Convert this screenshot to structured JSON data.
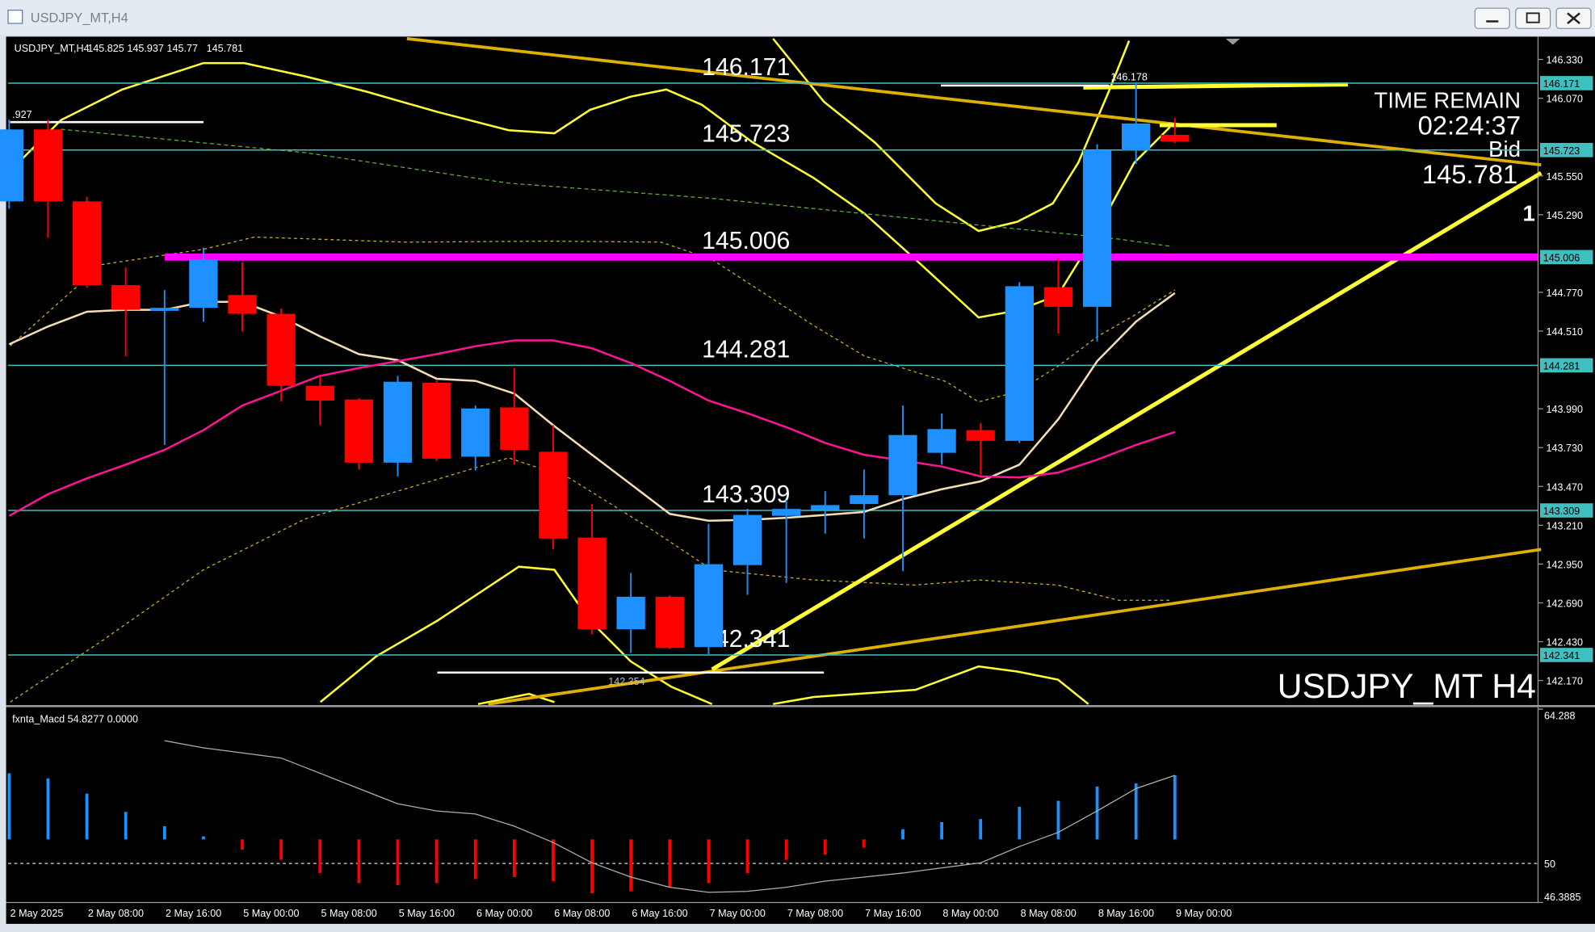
{
  "window": {
    "title": "USDJPY_MT,H4"
  },
  "chart_data": [
    {
      "type": "candlestick",
      "header": "USDJPY_MT,H4",
      "categories": [
        "2 May 2025",
        null,
        "2 May 08:00",
        null,
        "2 May 16:00",
        null,
        "5 May 00:00",
        null,
        "5 May 08:00",
        null,
        "5 May 16:00",
        null,
        "6 May 00:00",
        null,
        "6 May 08:00",
        null,
        "6 May 16:00",
        null,
        "7 May 00:00",
        null,
        "7 May 08:00",
        null,
        "7 May 16:00",
        null,
        "8 May 00:00",
        null,
        "8 May 08:00",
        null,
        "8 May 16:00",
        null,
        "9 May 00:00"
      ],
      "open": [
        145.379,
        145.861,
        145.379,
        144.818,
        144.646,
        144.666,
        144.752,
        144.626,
        144.144,
        144.052,
        143.629,
        144.164,
        143.669,
        143.999,
        143.702,
        143.127,
        142.513,
        142.731,
        142.394,
        142.943,
        143.273,
        143.312,
        143.352,
        143.411,
        143.695,
        143.847,
        143.775,
        144.805,
        144.673,
        145.722,
        145.825
      ],
      "high": [
        145.927,
        145.927,
        145.41,
        144.937,
        144.785,
        145.069,
        144.97,
        144.66,
        144.21,
        144.06,
        144.21,
        144.18,
        144.012,
        144.263,
        143.88,
        143.352,
        142.89,
        142.74,
        143.22,
        143.32,
        143.38,
        143.438,
        143.583,
        144.012,
        143.959,
        143.893,
        144.838,
        145.0,
        145.762,
        146.178,
        145.937
      ],
      "low": [
        145.33,
        145.135,
        144.8,
        144.342,
        143.748,
        144.573,
        144.507,
        144.04,
        143.88,
        143.583,
        143.537,
        143.64,
        143.576,
        143.616,
        143.05,
        142.48,
        142.354,
        142.38,
        142.341,
        142.744,
        142.824,
        143.154,
        143.121,
        142.903,
        143.616,
        143.55,
        143.76,
        144.494,
        144.441,
        145.63,
        145.77
      ],
      "close": [
        145.861,
        145.379,
        144.818,
        144.653,
        144.666,
        144.99,
        144.626,
        144.144,
        144.045,
        143.629,
        144.171,
        143.656,
        143.992,
        143.715,
        143.121,
        142.513,
        142.731,
        142.388,
        142.949,
        143.279,
        143.319,
        143.345,
        143.411,
        143.814,
        143.854,
        143.775,
        144.811,
        144.673,
        145.722,
        145.901,
        145.781
      ],
      "up_color": "#1e90ff",
      "down_color": "#ff0000",
      "series": [
        {
          "color": "#f5deb3",
          "values": [
            144.422,
            144.541,
            144.64,
            144.653,
            144.653,
            144.706,
            144.706,
            144.607,
            144.475,
            144.356,
            144.316,
            144.191,
            144.177,
            144.092,
            143.88,
            143.682,
            143.484,
            143.286,
            143.24,
            143.246,
            143.26,
            143.279,
            143.299,
            143.385,
            143.451,
            143.504,
            143.616,
            143.92,
            144.309,
            144.574,
            144.765
          ]
        },
        {
          "color": "#ff1493",
          "values": [
            143.273,
            143.418,
            143.524,
            143.616,
            143.715,
            143.847,
            144.012,
            144.111,
            144.21,
            144.263,
            144.309,
            144.356,
            144.409,
            144.448,
            144.448,
            144.395,
            144.296,
            144.177,
            144.045,
            143.96,
            143.867,
            143.761,
            143.682,
            143.643,
            143.603,
            143.537,
            143.53,
            143.563,
            143.649,
            143.748,
            143.834
          ]
        }
      ],
      "levels": [
        {
          "value": 146.171,
          "color": "#3fbfbf"
        },
        {
          "value": 145.723,
          "color": "#3fbfbf"
        },
        {
          "value": 145.006,
          "color": "#ff00ff"
        },
        {
          "value": 144.281,
          "color": "#3fbfbf"
        },
        {
          "value": 143.309,
          "color": "#3fbfbf"
        },
        {
          "value": 142.341,
          "color": "#3fbfbf"
        }
      ],
      "ylim": [
        142.012,
        146.469
      ],
      "yticks": [
        {
          "value": 146.33,
          "label": "146.330"
        },
        {
          "value": 146.07,
          "label": "146.070"
        },
        {
          "value": 145.55,
          "label": "145.550"
        },
        {
          "value": 145.29,
          "label": "145.290"
        },
        {
          "value": 144.77,
          "label": "144.770"
        },
        {
          "value": 144.51,
          "label": "144.510"
        },
        {
          "value": 143.99,
          "label": "143.990"
        },
        {
          "value": 143.73,
          "label": "143.730"
        },
        {
          "value": 143.47,
          "label": "143.470"
        },
        {
          "value": 143.21,
          "label": "143.210"
        },
        {
          "value": 142.95,
          "label": "142.950"
        },
        {
          "value": 142.69,
          "label": "142.690"
        },
        {
          "value": 142.43,
          "label": "142.430"
        },
        {
          "value": 142.17,
          "label": "142.170"
        }
      ],
      "prev_high_mark": ".927",
      "time_remain_label": "TIME REMAIN",
      "time_remain": "02:24:37",
      "price_label": "Bid",
      "edge_mark": "1",
      "watermark": "USDJPY_MT H4"
    },
    {
      "type": "bar",
      "label": "fxnta_Macd 54.8277 0.0000",
      "up_color": "#1e90ff",
      "down_color": "#ff0000",
      "series": [
        {
          "values": [
            58.353,
            57.882,
            56.469,
            54.773,
            53.454,
            52.512,
            51.287,
            50.345,
            49.12,
            48.178,
            47.99,
            48.178,
            48.555,
            48.743,
            48.367,
            47.236,
            47.424,
            47.801,
            48.178,
            49.12,
            50.345,
            50.816,
            51.476,
            53.171,
            53.831,
            54.113,
            55.244,
            55.809,
            57.128,
            57.411,
            58.164
          ]
        },
        {
          "type": "line",
          "color": "#b0b0b0",
          "values": [
            null,
            null,
            null,
            null,
            61.367,
            60.708,
            60.237,
            59.766,
            58.353,
            56.94,
            55.526,
            54.867,
            54.584,
            53.454,
            51.946,
            50.062,
            48.743,
            47.801,
            47.33,
            47.424,
            47.801,
            48.367,
            48.743,
            49.12,
            49.591,
            50.062,
            51.57,
            52.889,
            54.867,
            56.94,
            58.164
          ]
        }
      ],
      "ylim": [
        46.3885,
        64.288
      ],
      "yticks": [
        64.288,
        50,
        46.3885
      ]
    }
  ]
}
